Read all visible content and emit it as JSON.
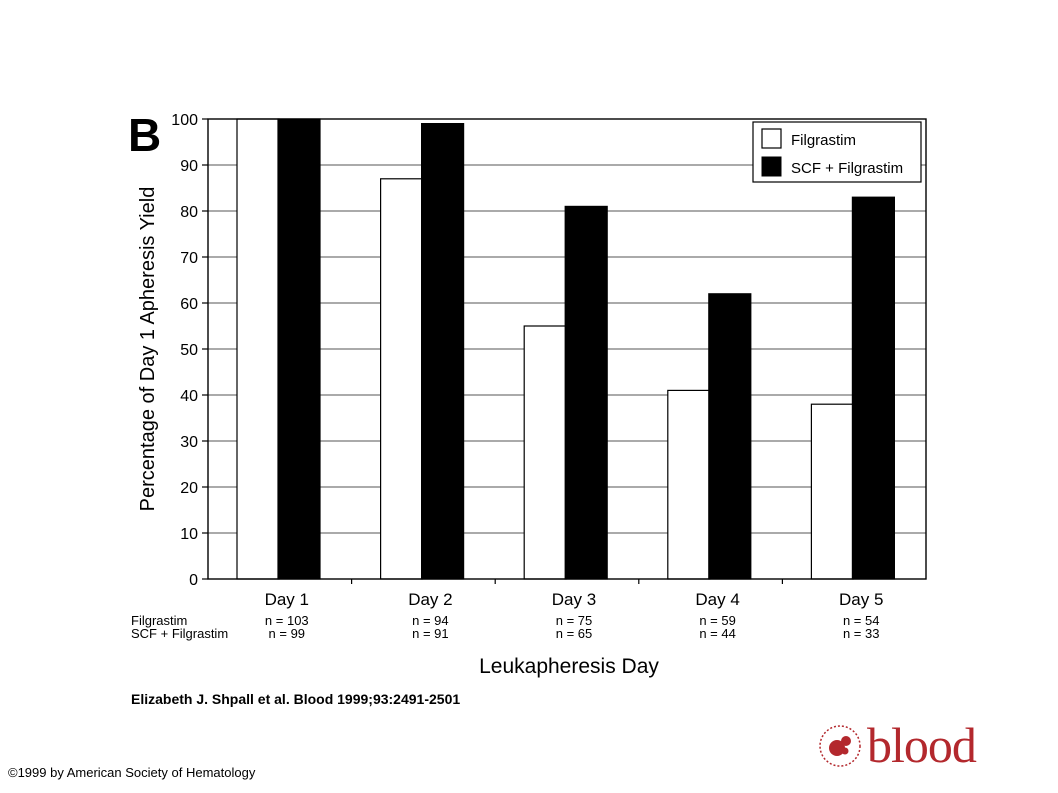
{
  "panel_label": "B",
  "citation": "Elizabeth J. Shpall et al. Blood 1999;93:2491-2501",
  "copyright": "©1999 by American Society of Hematology",
  "logo": {
    "text": "blood",
    "icon": "blood-logo-icon",
    "color": "#b3282d"
  },
  "chart_data": {
    "type": "bar",
    "title": "",
    "xlabel": "Leukapheresis Day",
    "ylabel": "Percentage of Day 1 Apheresis Yield",
    "ylim": [
      0,
      100
    ],
    "yticks": [
      0,
      10,
      20,
      30,
      40,
      50,
      60,
      70,
      80,
      90,
      100
    ],
    "grid": true,
    "legend_position": "top-right",
    "categories": [
      "Day 1",
      "Day 2",
      "Day 3",
      "Day 4",
      "Day 5"
    ],
    "series": [
      {
        "name": "Filgrastim",
        "fill": "#ffffff",
        "values": [
          100,
          87,
          55,
          41,
          38
        ],
        "n_label": "Filgrastim",
        "n": [
          "n = 103",
          "n = 94",
          "n = 75",
          "n = 59",
          "n = 54"
        ]
      },
      {
        "name": "SCF + Filgrastim",
        "fill": "#000000",
        "values": [
          100,
          99,
          81,
          62,
          83
        ],
        "n_label": "SCF + Filgrastim",
        "n": [
          "n =   99",
          "n = 91",
          "n = 65",
          "n = 44",
          "n = 33"
        ]
      }
    ]
  }
}
